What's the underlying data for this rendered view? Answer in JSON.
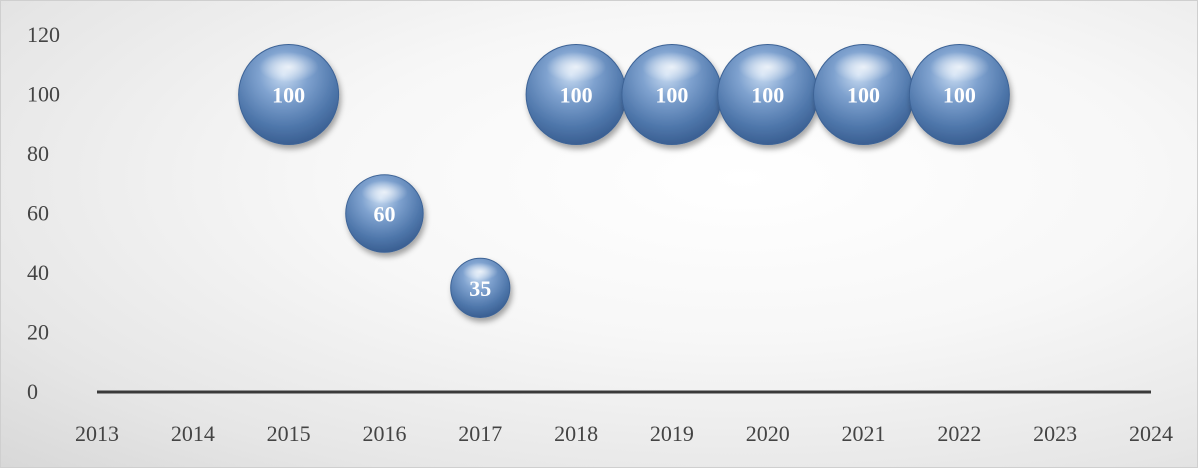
{
  "chart_data": {
    "type": "bubble",
    "title": "",
    "xlabel": "",
    "ylabel": "",
    "x_ticks": [
      "2013",
      "2014",
      "2015",
      "2016",
      "2017",
      "2018",
      "2019",
      "2020",
      "2021",
      "2022",
      "2023",
      "2024"
    ],
    "y_ticks": [
      "0",
      "20",
      "40",
      "60",
      "80",
      "100",
      "120"
    ],
    "xlim": [
      2013,
      2024
    ],
    "ylim": [
      0,
      120
    ],
    "grid": false,
    "legend": "none",
    "series": [
      {
        "color": "#5b84b8",
        "points": [
          {
            "x": 2015,
            "y": 100,
            "size": 100,
            "label": "100"
          },
          {
            "x": 2016,
            "y": 60,
            "size": 60,
            "label": "60"
          },
          {
            "x": 2017,
            "y": 35,
            "size": 35,
            "label": "35"
          },
          {
            "x": 2018,
            "y": 100,
            "size": 100,
            "label": "100"
          },
          {
            "x": 2019,
            "y": 100,
            "size": 100,
            "label": "100"
          },
          {
            "x": 2020,
            "y": 100,
            "size": 100,
            "label": "100"
          },
          {
            "x": 2021,
            "y": 100,
            "size": 100,
            "label": "100"
          },
          {
            "x": 2022,
            "y": 100,
            "size": 100,
            "label": "100"
          }
        ]
      }
    ]
  }
}
